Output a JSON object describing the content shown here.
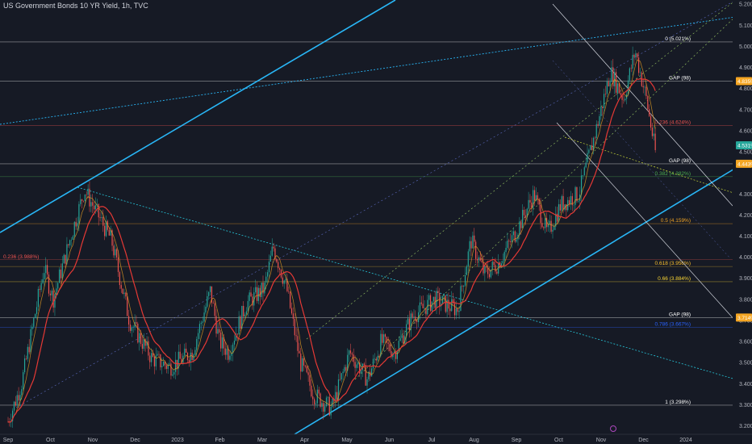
{
  "chart_data": {
    "type": "line",
    "title": "US Government Bonds 10 YR Yield, 1h, TVC",
    "xlabel": "",
    "ylabel": "",
    "ylim": [
      3.16,
      5.22
    ],
    "colors": {
      "background": "#161a25",
      "up": "#26a69a",
      "down": "#ef5350",
      "ma_fast": "#f5a623",
      "ma_slow": "#e53935",
      "trendline": "#29b6f6",
      "fib": "#d1d4dc"
    },
    "x_ticks": [
      "Sep",
      "Oct",
      "Nov",
      "Dec",
      "2023",
      "Feb",
      "Mar",
      "Apr",
      "May",
      "Jun",
      "Jul",
      "Aug",
      "Sep",
      "Oct",
      "Nov",
      "Dec",
      "2024"
    ],
    "x_ticks_pos": [
      0,
      1,
      2,
      3,
      4,
      5,
      6,
      7,
      8,
      9,
      10,
      11,
      12,
      13,
      14,
      15,
      16
    ],
    "y_ticks": [
      "5.200%",
      "5.100%",
      "5.000%",
      "4.900%",
      "4.800%",
      "4.700%",
      "4.600%",
      "4.500%",
      "4.300%",
      "4.200%",
      "4.100%",
      "4.000%",
      "3.900%",
      "3.800%",
      "3.700%",
      "3.600%",
      "3.500%",
      "3.400%",
      "3.300%",
      "3.200%"
    ],
    "y_ticks_val": [
      5.2,
      5.1,
      5.0,
      4.9,
      4.8,
      4.7,
      4.6,
      4.5,
      4.3,
      4.2,
      4.1,
      4.0,
      3.9,
      3.8,
      3.7,
      3.6,
      3.5,
      3.4,
      3.3,
      3.2
    ],
    "price_path_x": [
      0,
      0.3,
      0.8,
      1.0,
      1.4,
      1.7,
      2.0,
      2.3,
      2.7,
      3.2,
      3.6,
      4.1,
      4.5,
      4.7,
      4.9,
      5.3,
      5.7,
      5.9,
      6.2,
      6.5,
      6.8,
      7.2,
      7.6,
      8.0,
      8.3,
      8.6,
      9.0,
      9.5,
      10.0,
      10.3,
      10.6,
      10.9,
      11.3,
      11.7,
      12.0,
      12.3,
      12.7,
      13.1,
      13.4,
      13.7,
      13.95,
      14.2,
      14.4
    ],
    "price_path_y": [
      3.22,
      3.4,
      3.95,
      3.8,
      4.1,
      4.32,
      4.2,
      4.08,
      3.7,
      3.52,
      3.48,
      3.55,
      3.84,
      3.6,
      3.55,
      3.78,
      3.85,
      4.05,
      3.85,
      3.5,
      3.35,
      3.28,
      3.55,
      3.42,
      3.6,
      3.55,
      3.72,
      3.8,
      3.75,
      4.08,
      3.92,
      3.97,
      4.12,
      4.3,
      4.11,
      4.25,
      4.3,
      4.62,
      4.88,
      4.75,
      4.98,
      4.75,
      4.5
    ],
    "levels": [
      {
        "label": "0 (5.021%)",
        "value": 5.021,
        "color": "#ffffff"
      },
      {
        "label": "GAP (98)",
        "value": 4.835,
        "color": "#ffffff"
      },
      {
        "label": "0.236 (4.624%)",
        "value": 4.624,
        "color": "#ef5350"
      },
      {
        "label": "GAP (98)",
        "value": 4.443,
        "color": "#ffffff"
      },
      {
        "label": "0.382 (4.382%)",
        "value": 4.382,
        "color": "#4caf50"
      },
      {
        "label": "0.5 (4.159%)",
        "value": 4.159,
        "color": "#f5a623"
      },
      {
        "label": "0.618 (3.956%)",
        "value": 3.956,
        "color": "#fbc02d"
      },
      {
        "label": "0.66 (3.884%)",
        "value": 3.884,
        "color": "#fdd835"
      },
      {
        "label": "GAP (98)",
        "value": 3.714,
        "color": "#ffffff"
      },
      {
        "label": "0.786 (3.667%)",
        "value": 3.667,
        "color": "#2962ff"
      },
      {
        "label": "1 (3.298%)",
        "value": 3.298,
        "color": "#ffffff"
      },
      {
        "label": "0.236 (3.988%)",
        "value": 3.988,
        "color": "#ef5350"
      }
    ],
    "price_badges": [
      {
        "label": "4.835%",
        "value": 4.835,
        "color": "#f5a623"
      },
      {
        "label": "4.531%",
        "value": 4.531,
        "color": "#26a69a"
      },
      {
        "label": "4.443%",
        "value": 4.443,
        "color": "#f5a623"
      },
      {
        "label": "3.714%",
        "value": 3.714,
        "color": "#f5a623"
      }
    ]
  }
}
